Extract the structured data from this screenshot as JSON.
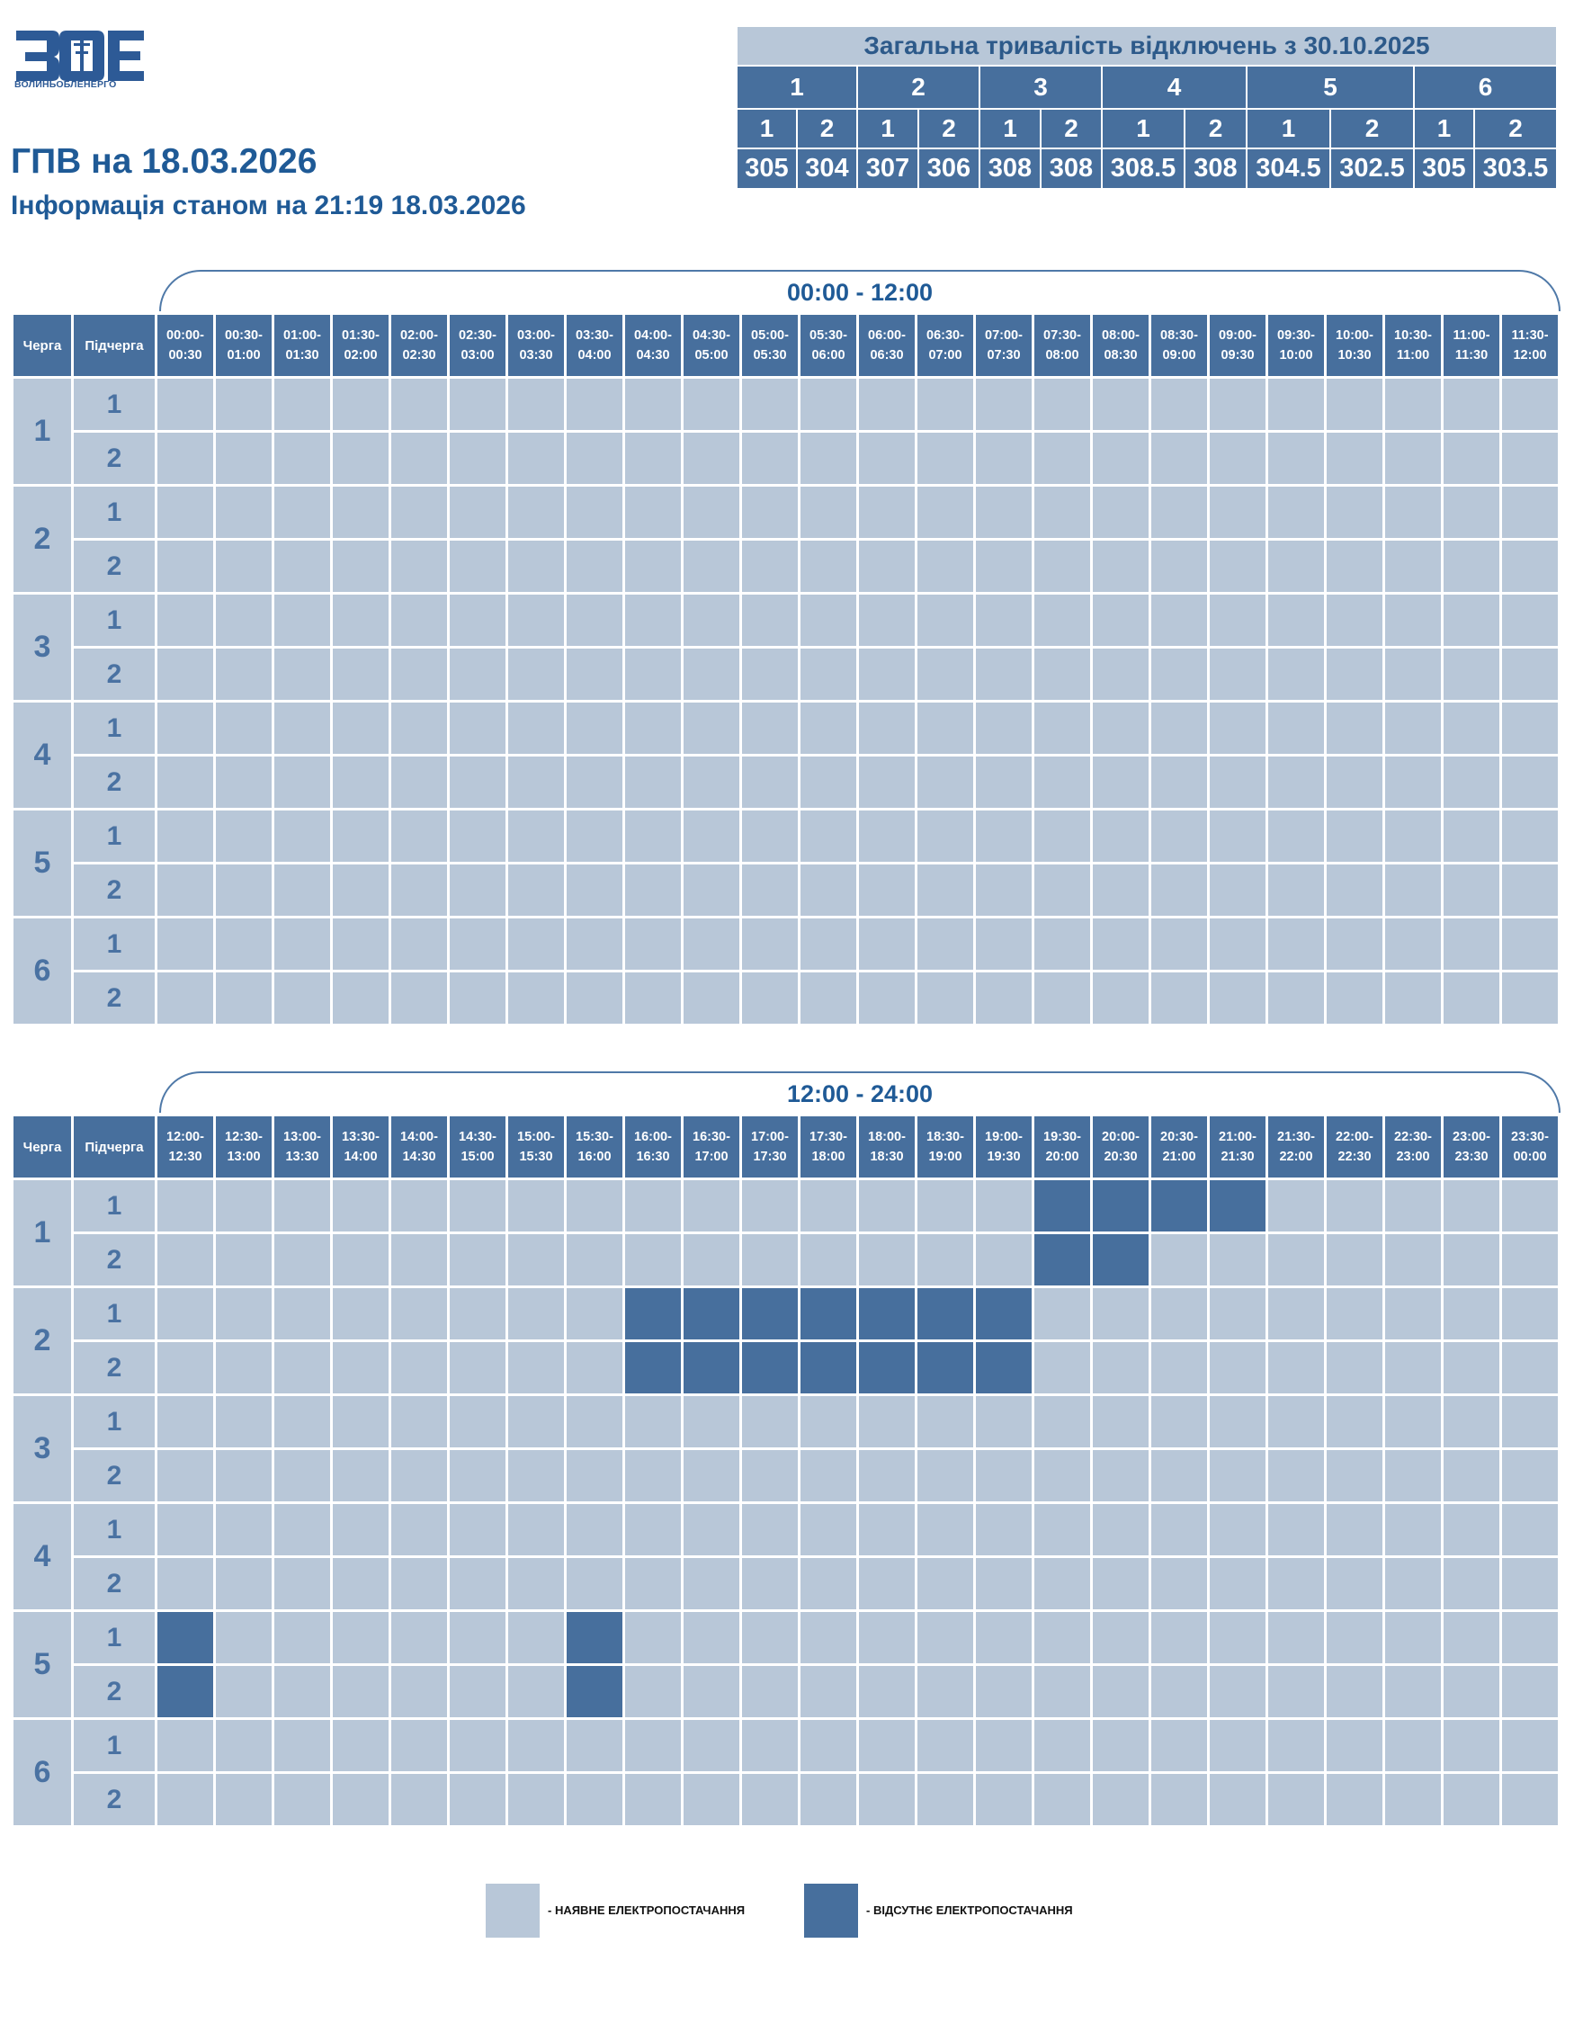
{
  "logo": {
    "text": "ВОЛИНЬОБЛЕНЕРГО"
  },
  "title": "ГПВ на 18.03.2026",
  "subtitle": "Інформація станом на 21:19 18.03.2026",
  "summary": {
    "title": "Загальна тривалість відключень з 30.10.2025",
    "queues": [
      "1",
      "2",
      "3",
      "4",
      "5",
      "6"
    ],
    "subqueues": [
      "1",
      "2",
      "1",
      "2",
      "1",
      "2",
      "1",
      "2",
      "1",
      "2",
      "1",
      "2"
    ],
    "values": [
      "305",
      "304",
      "307",
      "306",
      "308",
      "308",
      "308.5",
      "308",
      "304.5",
      "302.5",
      "305",
      "303.5"
    ]
  },
  "colors": {
    "available": "#b8c7d8",
    "unavailable": "#476f9d",
    "header": "#476f9d",
    "title": "#1f5a96"
  },
  "headers": {
    "queue": "Черга",
    "subqueue": "Підчерга"
  },
  "periods": [
    {
      "label": "00:00 - 12:00",
      "slots": [
        "00:00-00:30",
        "00:30-01:00",
        "01:00-01:30",
        "01:30-02:00",
        "02:00-02:30",
        "02:30-03:00",
        "03:00-03:30",
        "03:30-04:00",
        "04:00-04:30",
        "04:30-05:00",
        "05:00-05:30",
        "05:30-06:00",
        "06:00-06:30",
        "06:30-07:00",
        "07:00-07:30",
        "07:30-08:00",
        "08:00-08:30",
        "08:30-09:00",
        "09:00-09:30",
        "09:30-10:00",
        "10:00-10:30",
        "10:30-11:00",
        "11:00-11:30",
        "11:30-12:00"
      ],
      "rows": [
        {
          "queue": "1",
          "subqueue": "1",
          "off": []
        },
        {
          "queue": "1",
          "subqueue": "2",
          "off": []
        },
        {
          "queue": "2",
          "subqueue": "1",
          "off": []
        },
        {
          "queue": "2",
          "subqueue": "2",
          "off": []
        },
        {
          "queue": "3",
          "subqueue": "1",
          "off": []
        },
        {
          "queue": "3",
          "subqueue": "2",
          "off": []
        },
        {
          "queue": "4",
          "subqueue": "1",
          "off": []
        },
        {
          "queue": "4",
          "subqueue": "2",
          "off": []
        },
        {
          "queue": "5",
          "subqueue": "1",
          "off": []
        },
        {
          "queue": "5",
          "subqueue": "2",
          "off": []
        },
        {
          "queue": "6",
          "subqueue": "1",
          "off": []
        },
        {
          "queue": "6",
          "subqueue": "2",
          "off": []
        }
      ]
    },
    {
      "label": "12:00 - 24:00",
      "slots": [
        "12:00-12:30",
        "12:30-13:00",
        "13:00-13:30",
        "13:30-14:00",
        "14:00-14:30",
        "14:30-15:00",
        "15:00-15:30",
        "15:30-16:00",
        "16:00-16:30",
        "16:30-17:00",
        "17:00-17:30",
        "17:30-18:00",
        "18:00-18:30",
        "18:30-19:00",
        "19:00-19:30",
        "19:30-20:00",
        "20:00-20:30",
        "20:30-21:00",
        "21:00-21:30",
        "21:30-22:00",
        "22:00-22:30",
        "22:30-23:00",
        "23:00-23:30",
        "23:30-00:00"
      ],
      "rows": [
        {
          "queue": "1",
          "subqueue": "1",
          "off": [
            "19:30-20:00",
            "20:00-20:30",
            "20:30-21:00",
            "21:00-21:30"
          ]
        },
        {
          "queue": "1",
          "subqueue": "2",
          "off": [
            "19:30-20:00",
            "20:00-20:30"
          ]
        },
        {
          "queue": "2",
          "subqueue": "1",
          "off": [
            "16:00-16:30",
            "16:30-17:00",
            "17:00-17:30",
            "17:30-18:00",
            "18:00-18:30",
            "18:30-19:00",
            "19:00-19:30"
          ]
        },
        {
          "queue": "2",
          "subqueue": "2",
          "off": [
            "16:00-16:30",
            "16:30-17:00",
            "17:00-17:30",
            "17:30-18:00",
            "18:00-18:30",
            "18:30-19:00",
            "19:00-19:30"
          ]
        },
        {
          "queue": "3",
          "subqueue": "1",
          "off": []
        },
        {
          "queue": "3",
          "subqueue": "2",
          "off": []
        },
        {
          "queue": "4",
          "subqueue": "1",
          "off": []
        },
        {
          "queue": "4",
          "subqueue": "2",
          "off": []
        },
        {
          "queue": "5",
          "subqueue": "1",
          "off": [
            "12:00-12:30",
            "15:30-16:00"
          ]
        },
        {
          "queue": "5",
          "subqueue": "2",
          "off": [
            "12:00-12:30",
            "15:30-16:00"
          ]
        },
        {
          "queue": "6",
          "subqueue": "1",
          "off": []
        },
        {
          "queue": "6",
          "subqueue": "2",
          "off": []
        }
      ]
    }
  ],
  "legend": {
    "available": "- НАЯВНЕ ЕЛЕКТРОПОСТАЧАННЯ",
    "unavailable": "- ВІДСУТНЄ ЕЛЕКТРОПОСТАЧАННЯ"
  }
}
